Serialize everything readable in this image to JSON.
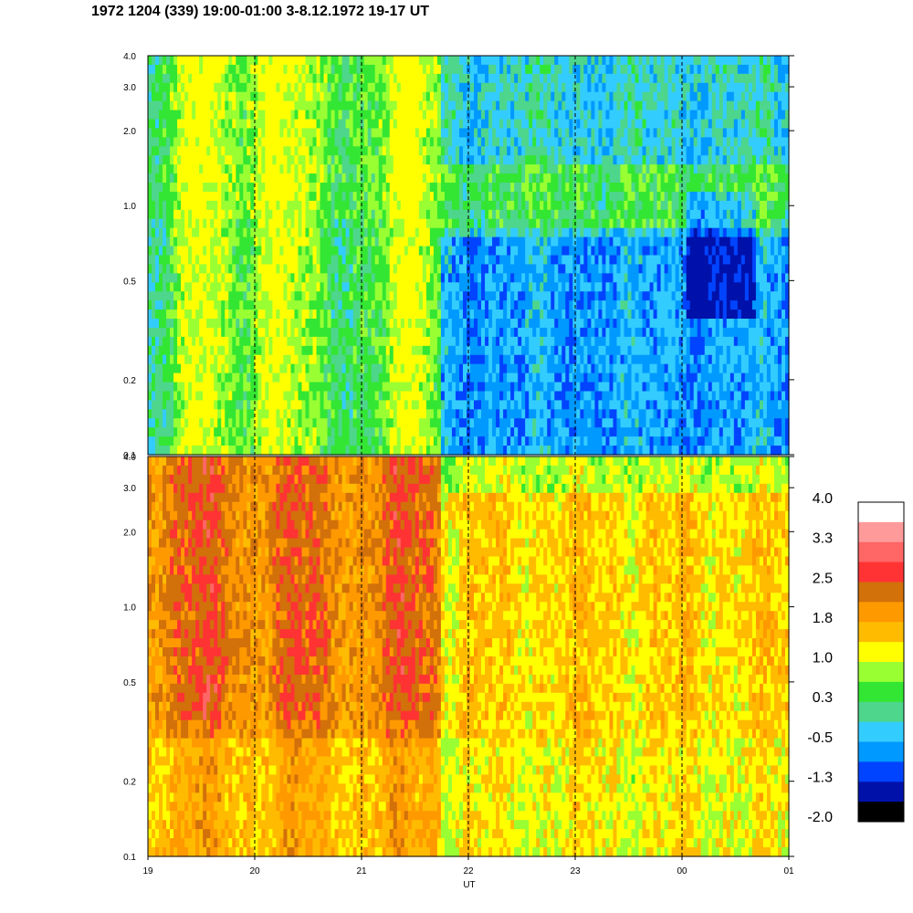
{
  "title": "1972 1204 (339) 19:00-01:00 3-8.12.1972  19-17 UT",
  "chart_data": [
    {
      "type": "heatmap",
      "panel": "top",
      "y_scale": "log",
      "ylim": [
        0.1,
        4.0
      ],
      "y_ticks": [
        "4.0",
        "3.0",
        "2.0",
        "1.0",
        "0.5",
        "0.2",
        "0.1"
      ],
      "y_tick_values": [
        4.0,
        3.0,
        2.0,
        1.0,
        0.5,
        0.2,
        0.1
      ],
      "x_ticks": [
        "19",
        "20",
        "21",
        "22",
        "23",
        "00",
        "01"
      ],
      "x_tick_hours": [
        19,
        20,
        21,
        22,
        23,
        24,
        25
      ],
      "xlim_hours": [
        19,
        25
      ],
      "dashed_hour_lines": [
        20,
        21,
        22,
        23,
        24
      ]
    },
    {
      "type": "heatmap",
      "panel": "bottom",
      "y_scale": "log",
      "ylim": [
        0.1,
        4.0
      ],
      "y_ticks": [
        "4.0",
        "3.0",
        "2.0",
        "1.0",
        "0.5",
        "0.2",
        "0.1"
      ],
      "y_tick_values": [
        4.0,
        3.0,
        2.0,
        1.0,
        0.5,
        0.2,
        0.1
      ],
      "x_ticks": [
        "19",
        "20",
        "21",
        "22",
        "23",
        "00",
        "01"
      ],
      "x_tick_hours": [
        19,
        20,
        21,
        22,
        23,
        24,
        25
      ],
      "xlim_hours": [
        19,
        25
      ],
      "xlabel": "UT",
      "dashed_hour_lines": [
        20,
        21,
        22,
        23,
        24
      ]
    }
  ],
  "colorbar": {
    "labels": [
      "4.0",
      "3.3",
      "2.5",
      "1.8",
      "1.0",
      "0.3",
      "-0.5",
      "-1.3",
      "-2.0"
    ],
    "colors": [
      "#ffffff",
      "#ff9a9a",
      "#ff6666",
      "#ff3333",
      "#d2700a",
      "#ff9900",
      "#ffbb00",
      "#ffff00",
      "#99ff33",
      "#33e633",
      "#4dd68c",
      "#33ccff",
      "#0099ff",
      "#0044ff",
      "#0011aa",
      "#000000"
    ]
  }
}
